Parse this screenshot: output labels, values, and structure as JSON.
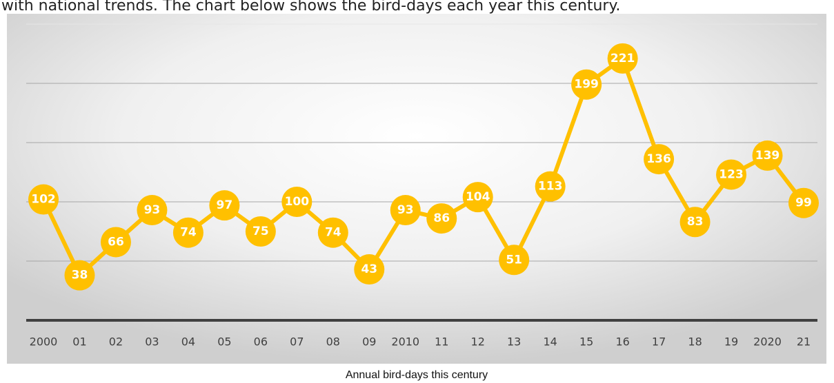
{
  "intro": "with national trends. The chart below shows the bird-days each year this century.",
  "chart_data": {
    "type": "line",
    "caption": "Annual bird-days this century",
    "categories": [
      "2000",
      "01",
      "02",
      "03",
      "04",
      "05",
      "06",
      "07",
      "08",
      "09",
      "2010",
      "11",
      "12",
      "13",
      "14",
      "15",
      "16",
      "17",
      "18",
      "19",
      "2020",
      "21"
    ],
    "series": [
      {
        "name": "Bird-days",
        "color": "#ffc000",
        "values": [
          102,
          38,
          66,
          93,
          74,
          97,
          75,
          100,
          74,
          43,
          93,
          86,
          104,
          51,
          113,
          199,
          221,
          136,
          83,
          123,
          139,
          99
        ]
      }
    ],
    "ylim": [
      0,
      250
    ],
    "yticks": [
      0,
      50,
      100,
      150,
      200,
      250
    ],
    "grid": true
  }
}
